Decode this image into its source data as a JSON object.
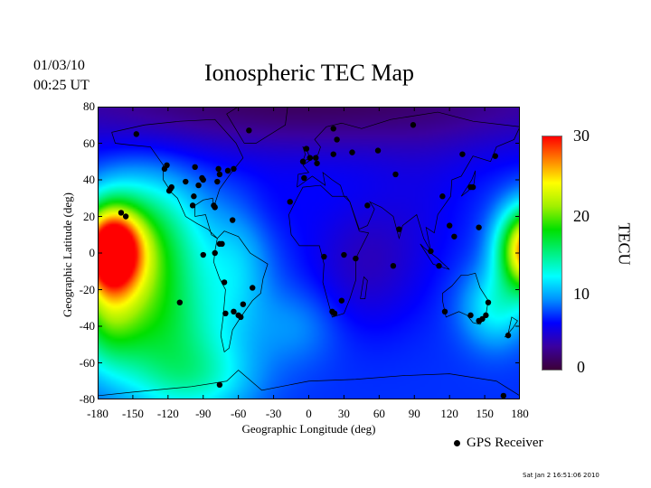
{
  "header": {
    "title": "Ionospheric TEC Map",
    "date": "01/03/10",
    "time": "00:25 UT"
  },
  "map": {
    "xlabel": "Geographic Longitude (deg)",
    "ylabel": "Geographic Latitude (deg)",
    "xlim": [
      -180,
      180
    ],
    "ylim": [
      -80,
      80
    ],
    "xticks": [
      "-180",
      "-150",
      "-120",
      "-90",
      "-60",
      "-30",
      "0",
      "30",
      "60",
      "90",
      "120",
      "150",
      "180"
    ],
    "yticks": [
      "80",
      "60",
      "40",
      "20",
      "0",
      "-20",
      "-40",
      "-60",
      "-80"
    ],
    "receivers": [
      [
        -147,
        65
      ],
      [
        -160,
        22
      ],
      [
        -156,
        20
      ],
      [
        -121,
        48
      ],
      [
        -123,
        46
      ],
      [
        -118,
        35
      ],
      [
        -117,
        36
      ],
      [
        -119,
        34
      ],
      [
        -105,
        39
      ],
      [
        -97,
        47
      ],
      [
        -94,
        37
      ],
      [
        -98,
        31
      ],
      [
        -99,
        26
      ],
      [
        -91,
        41
      ],
      [
        -90,
        40
      ],
      [
        -78,
        39
      ],
      [
        -77,
        46
      ],
      [
        -76,
        43
      ],
      [
        -69,
        45
      ],
      [
        -64,
        46
      ],
      [
        -51,
        67
      ],
      [
        -81,
        26
      ],
      [
        -80,
        25
      ],
      [
        -65,
        18
      ],
      [
        -74,
        5
      ],
      [
        -76,
        5
      ],
      [
        -90,
        -1
      ],
      [
        -80,
        0
      ],
      [
        -72,
        -16
      ],
      [
        -110,
        -27
      ],
      [
        -71,
        -33
      ],
      [
        -64,
        -32
      ],
      [
        -60,
        -34
      ],
      [
        -58,
        -35
      ],
      [
        -56,
        -28
      ],
      [
        -48,
        -19
      ],
      [
        -76,
        -72
      ],
      [
        -16,
        28
      ],
      [
        -5,
        50
      ],
      [
        -2,
        57
      ],
      [
        1,
        52
      ],
      [
        6,
        52
      ],
      [
        7,
        49
      ],
      [
        21,
        68
      ],
      [
        24,
        62
      ],
      [
        21,
        54
      ],
      [
        37,
        55
      ],
      [
        59,
        56
      ],
      [
        74,
        43
      ],
      [
        89,
        70
      ],
      [
        13,
        -2
      ],
      [
        30,
        -1
      ],
      [
        40,
        -3
      ],
      [
        50,
        26
      ],
      [
        28,
        -26
      ],
      [
        20,
        -32
      ],
      [
        22,
        -33
      ],
      [
        72,
        -7
      ],
      [
        77,
        13
      ],
      [
        104,
        1
      ],
      [
        111,
        -7
      ],
      [
        114,
        31
      ],
      [
        120,
        15
      ],
      [
        124,
        9
      ],
      [
        131,
        54
      ],
      [
        138,
        36
      ],
      [
        140,
        36
      ],
      [
        145,
        14
      ],
      [
        159,
        53
      ],
      [
        116,
        -32
      ],
      [
        138,
        -34
      ],
      [
        145,
        -37
      ],
      [
        148,
        -36
      ],
      [
        151,
        -34
      ],
      [
        153,
        -27
      ],
      [
        170,
        -45
      ],
      [
        166,
        -78
      ],
      [
        -4,
        41
      ]
    ]
  },
  "colorbar": {
    "title": "TECU",
    "range": [
      0,
      30
    ],
    "ticks": [
      "30",
      "20",
      "10",
      "0"
    ],
    "stops": [
      "#3c0038",
      "#3a00a0",
      "#0000ff",
      "#0090ff",
      "#00ffff",
      "#00f080",
      "#00e000",
      "#a0f000",
      "#ffff00",
      "#ff8000",
      "#ff0000"
    ]
  },
  "legend": {
    "label": "GPS Receiver"
  },
  "footer": {
    "timestamp": "Sat Jan  2 16:51:06 2010"
  }
}
